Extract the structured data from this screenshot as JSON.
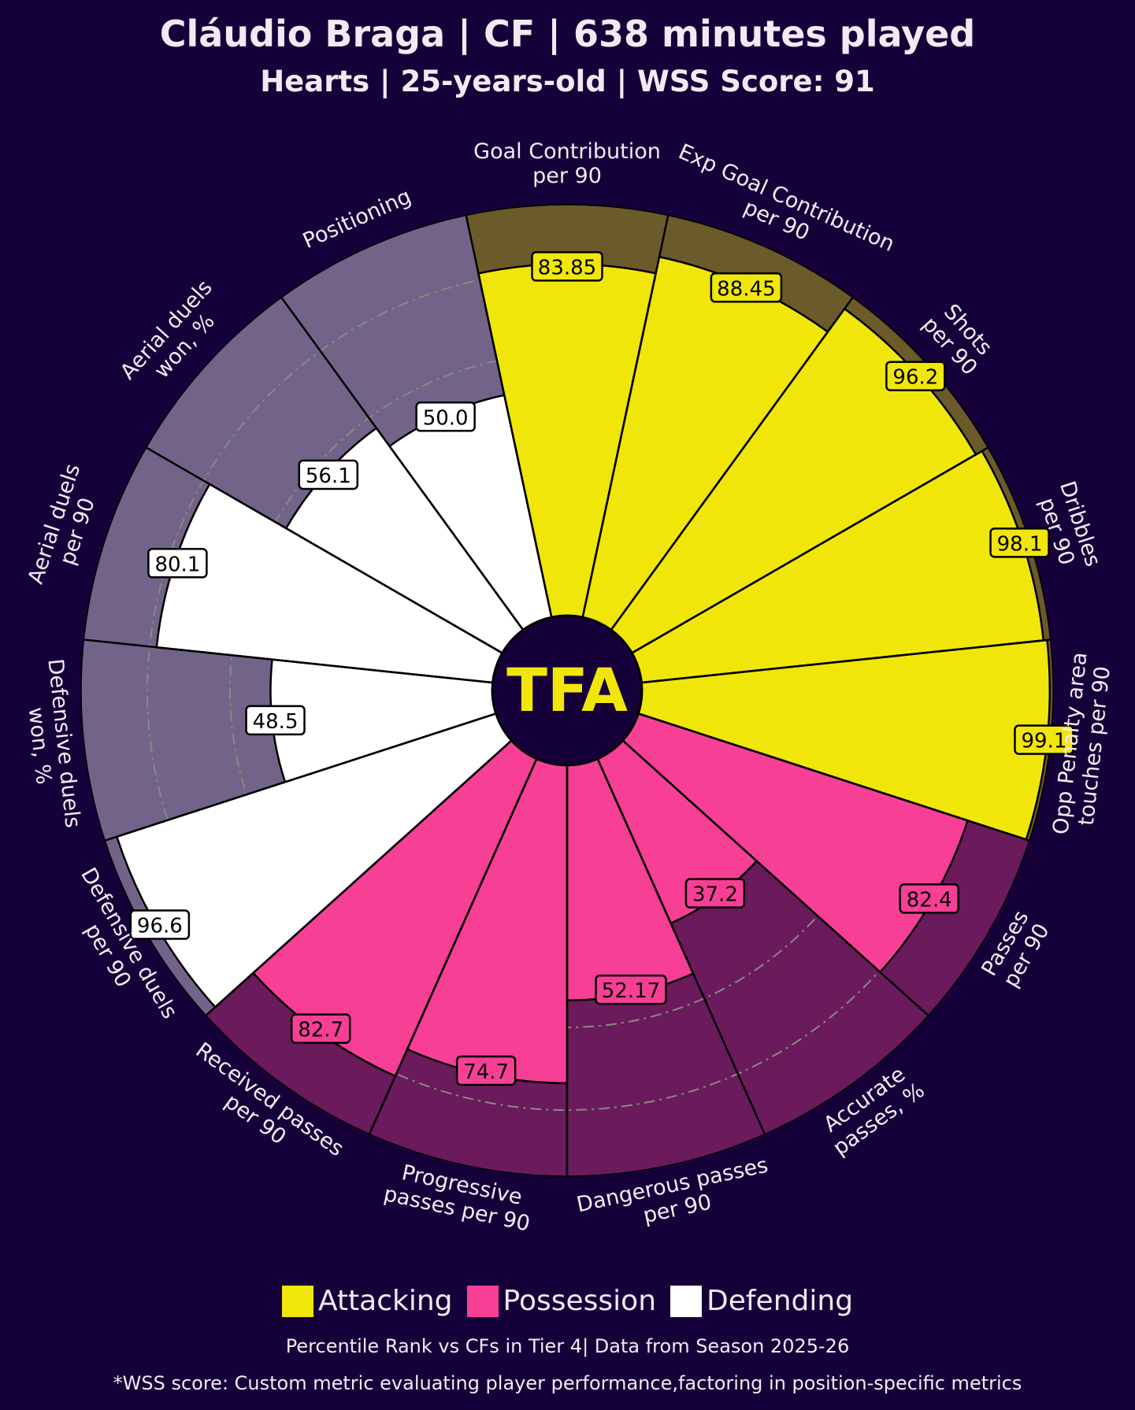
{
  "header": {
    "title": "Cláudio Braga | CF | 638 minutes played",
    "subtitle": "Hearts | 25-years-old | WSS Score: 91"
  },
  "logo_text": "TFA",
  "chart_data": {
    "type": "pizza",
    "range": [
      0,
      100
    ],
    "params": [
      {
        "label": "Goal Contribution\nper 90",
        "value": 83.85,
        "display": "83.85",
        "category": "Attacking"
      },
      {
        "label": "Exp Goal Contribution\nper 90",
        "value": 88.45,
        "display": "88.45",
        "category": "Attacking"
      },
      {
        "label": "Shots\nper 90",
        "value": 96.2,
        "display": "96.2",
        "category": "Attacking"
      },
      {
        "label": "Dribbles\nper 90",
        "value": 98.1,
        "display": "98.1",
        "category": "Attacking"
      },
      {
        "label": "Opp Penalty area\ntouches per 90",
        "value": 99.1,
        "display": "99.1",
        "category": "Attacking"
      },
      {
        "label": "Passes\nper 90",
        "value": 82.4,
        "display": "82.4",
        "category": "Possession"
      },
      {
        "label": "Accurate\npasses, %",
        "value": 37.2,
        "display": "37.2",
        "category": "Possession"
      },
      {
        "label": "Dangerous passes\nper 90",
        "value": 52.17,
        "display": "52.17",
        "category": "Possession"
      },
      {
        "label": "Progressive\npasses per 90",
        "value": 74.7,
        "display": "74.7",
        "category": "Possession"
      },
      {
        "label": "Received passes\nper 90",
        "value": 82.7,
        "display": "82.7",
        "category": "Possession"
      },
      {
        "label": "Defensive duels\nper 90",
        "value": 96.6,
        "display": "96.6",
        "category": "Defending"
      },
      {
        "label": "Defensive duels\nwon, %",
        "value": 48.5,
        "display": "48.5",
        "category": "Defending"
      },
      {
        "label": "Aerial duels\nper 90",
        "value": 80.1,
        "display": "80.1",
        "category": "Defending"
      },
      {
        "label": "Aerial duels\nwon, %",
        "value": 56.1,
        "display": "56.1",
        "category": "Defending"
      },
      {
        "label": "Positioning",
        "value": 50.0,
        "display": "50.0",
        "category": "Defending"
      }
    ],
    "categories": {
      "Attacking": {
        "fill": "#f0e60a",
        "background": "#6b5a2a"
      },
      "Possession": {
        "fill": "#f73f96",
        "background": "#6b1a5c"
      },
      "Defending": {
        "fill": "#ffffff",
        "background": "#716488"
      }
    }
  },
  "legend": [
    {
      "label": "Attacking",
      "color": "#f0e60a"
    },
    {
      "label": "Possession",
      "color": "#f73f96"
    },
    {
      "label": "Defending",
      "color": "#ffffff"
    }
  ],
  "footer": {
    "note": "Percentile Rank vs CFs in Tier 4| Data from Season 2025-26",
    "definition": "*WSS score: Custom metric evaluating player performance,factoring in position-specific metrics"
  }
}
